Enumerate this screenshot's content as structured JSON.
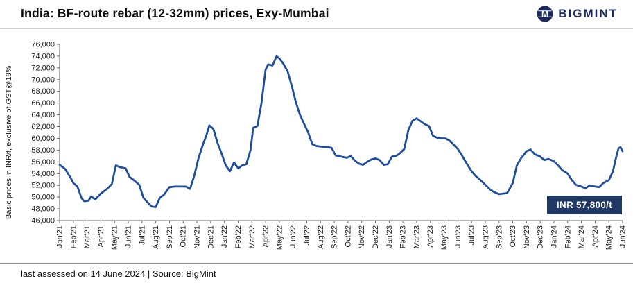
{
  "header": {
    "title": "India: BF-route rebar (12-32mm) prices, Exy-Mumbai",
    "brand": "BIGMINT",
    "brand_monogram": "M"
  },
  "annotation": {
    "label": "INR 57,800/t"
  },
  "footer": {
    "text": "last assessed on 14 June 2024 | Source: BigMint"
  },
  "colors": {
    "line": "#1f4e9e",
    "axis": "#666666",
    "annotation_bg": "#203864",
    "brand_navy": "#1a2a5e"
  },
  "chart_data": {
    "type": "line",
    "title": "India: BF-route rebar (12-32mm) prices, Exy-Mumbai",
    "ylabel": "Basic prices in INR/t,  exclusive of GST@18%",
    "ylim": [
      46000,
      76000
    ],
    "ytick_step": 2000,
    "yticks": [
      46000,
      48000,
      50000,
      52000,
      54000,
      56000,
      58000,
      60000,
      62000,
      64000,
      66000,
      68000,
      70000,
      72000,
      74000,
      76000
    ],
    "grid": false,
    "legend": "none",
    "x_categories": [
      "Jan'21",
      "Feb'21",
      "Mar'21",
      "Apr'21",
      "May'21",
      "Jun'21",
      "Jul'21",
      "Aug'21",
      "Sep'21",
      "Oct'21",
      "Nov'21",
      "Dec'21",
      "Jan'22",
      "Feb'22",
      "Mar'22",
      "Apr'22",
      "May'22",
      "Jun'22",
      "Jul'22",
      "Aug'22",
      "Sep'22",
      "Oct'22",
      "Nov'22",
      "Dec'22",
      "Jan'23",
      "Feb'23",
      "Mar'23",
      "Apr'23",
      "May'23",
      "Jun'23",
      "Jul'23",
      "Aug'23",
      "Sep'23",
      "Oct'23",
      "Nov'23",
      "Dec'23",
      "Jan'24",
      "Feb'24",
      "Mar'24",
      "Apr'24",
      "May'24",
      "Jun'24"
    ],
    "series": [
      {
        "name": "BF-route rebar (12-32mm) Exy-Mumbai",
        "last_value": 57800,
        "points": [
          [
            0,
            55500
          ],
          [
            0.4,
            54800
          ],
          [
            0.8,
            53300
          ],
          [
            1.0,
            52400
          ],
          [
            1.3,
            51800
          ],
          [
            1.6,
            49800
          ],
          [
            1.8,
            49300
          ],
          [
            2.1,
            49400
          ],
          [
            2.3,
            50100
          ],
          [
            2.6,
            49600
          ],
          [
            3.0,
            50600
          ],
          [
            3.4,
            51300
          ],
          [
            3.8,
            52200
          ],
          [
            4.1,
            55400
          ],
          [
            4.4,
            55100
          ],
          [
            4.8,
            54900
          ],
          [
            5.1,
            53400
          ],
          [
            5.4,
            52900
          ],
          [
            5.8,
            52100
          ],
          [
            6.1,
            49900
          ],
          [
            6.4,
            49100
          ],
          [
            6.7,
            48400
          ],
          [
            7.0,
            48300
          ],
          [
            7.3,
            49900
          ],
          [
            7.6,
            50400
          ],
          [
            8.0,
            51700
          ],
          [
            8.4,
            51800
          ],
          [
            8.8,
            51800
          ],
          [
            9.2,
            51800
          ],
          [
            9.5,
            51400
          ],
          [
            9.8,
            53600
          ],
          [
            10.1,
            56500
          ],
          [
            10.4,
            58700
          ],
          [
            10.7,
            60600
          ],
          [
            10.9,
            62200
          ],
          [
            11.2,
            61600
          ],
          [
            11.5,
            59200
          ],
          [
            11.8,
            57400
          ],
          [
            12.1,
            55400
          ],
          [
            12.4,
            54400
          ],
          [
            12.7,
            55900
          ],
          [
            13.0,
            54900
          ],
          [
            13.3,
            55400
          ],
          [
            13.6,
            55600
          ],
          [
            13.9,
            58000
          ],
          [
            14.1,
            61800
          ],
          [
            14.4,
            62100
          ],
          [
            14.7,
            66000
          ],
          [
            15.0,
            71700
          ],
          [
            15.2,
            72600
          ],
          [
            15.5,
            72400
          ],
          [
            15.8,
            74000
          ],
          [
            16.0,
            73600
          ],
          [
            16.3,
            72700
          ],
          [
            16.6,
            71400
          ],
          [
            16.9,
            69000
          ],
          [
            17.2,
            66200
          ],
          [
            17.5,
            64000
          ],
          [
            17.8,
            62500
          ],
          [
            18.1,
            61000
          ],
          [
            18.4,
            59000
          ],
          [
            18.7,
            58700
          ],
          [
            19.0,
            58600
          ],
          [
            19.4,
            58500
          ],
          [
            19.8,
            58400
          ],
          [
            20.1,
            57100
          ],
          [
            20.5,
            56900
          ],
          [
            20.9,
            56700
          ],
          [
            21.2,
            57000
          ],
          [
            21.5,
            56200
          ],
          [
            21.8,
            55700
          ],
          [
            22.1,
            55500
          ],
          [
            22.4,
            56000
          ],
          [
            22.7,
            56400
          ],
          [
            23.0,
            56600
          ],
          [
            23.3,
            56300
          ],
          [
            23.6,
            55500
          ],
          [
            23.9,
            55600
          ],
          [
            24.2,
            56900
          ],
          [
            24.5,
            57000
          ],
          [
            24.8,
            57500
          ],
          [
            25.1,
            58200
          ],
          [
            25.4,
            61400
          ],
          [
            25.7,
            63000
          ],
          [
            26.0,
            63400
          ],
          [
            26.3,
            62900
          ],
          [
            26.6,
            62400
          ],
          [
            26.9,
            62100
          ],
          [
            27.2,
            60400
          ],
          [
            27.5,
            60100
          ],
          [
            27.8,
            60000
          ],
          [
            28.1,
            60000
          ],
          [
            28.4,
            59600
          ],
          [
            28.7,
            58900
          ],
          [
            29.0,
            58200
          ],
          [
            29.3,
            57100
          ],
          [
            29.6,
            55900
          ],
          [
            30.0,
            54400
          ],
          [
            30.3,
            53600
          ],
          [
            30.6,
            53000
          ],
          [
            31.0,
            52100
          ],
          [
            31.3,
            51400
          ],
          [
            31.6,
            50900
          ],
          [
            32.0,
            50500
          ],
          [
            32.3,
            50600
          ],
          [
            32.6,
            50700
          ],
          [
            33.0,
            52400
          ],
          [
            33.3,
            55400
          ],
          [
            33.6,
            56600
          ],
          [
            34.0,
            57800
          ],
          [
            34.3,
            58100
          ],
          [
            34.6,
            57300
          ],
          [
            35.0,
            56900
          ],
          [
            35.3,
            56300
          ],
          [
            35.6,
            56500
          ],
          [
            36.0,
            56100
          ],
          [
            36.3,
            55400
          ],
          [
            36.6,
            54600
          ],
          [
            37.0,
            54000
          ],
          [
            37.3,
            52900
          ],
          [
            37.6,
            52100
          ],
          [
            38.0,
            51800
          ],
          [
            38.3,
            51500
          ],
          [
            38.6,
            52000
          ],
          [
            39.0,
            51800
          ],
          [
            39.3,
            51700
          ],
          [
            39.6,
            52400
          ],
          [
            40.0,
            52900
          ],
          [
            40.3,
            54400
          ],
          [
            40.5,
            56500
          ],
          [
            40.7,
            58300
          ],
          [
            40.85,
            58500
          ],
          [
            41,
            57800
          ]
        ]
      }
    ]
  }
}
